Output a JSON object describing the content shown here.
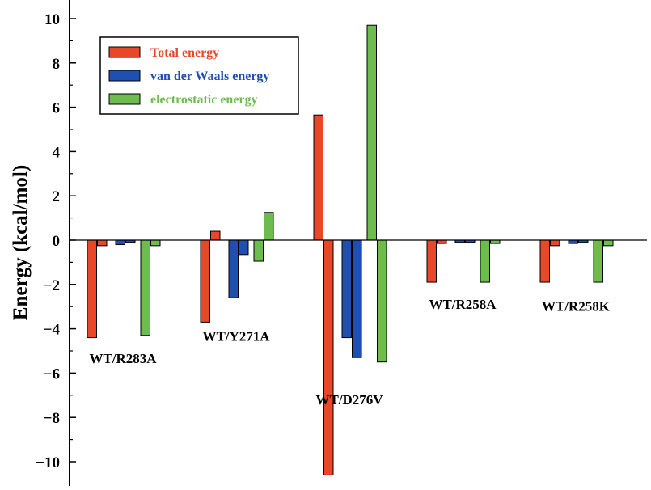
{
  "chart_data": {
    "type": "bar",
    "title": "",
    "xlabel": "",
    "ylabel": "Energy (kcal/mol)",
    "ylim": [
      -11,
      10
    ],
    "yticks": [
      10,
      8,
      6,
      4,
      2,
      0,
      -2,
      -4,
      -6,
      -8,
      -10
    ],
    "ytick_labels": [
      "10",
      "8",
      "6",
      "4",
      "2",
      "0",
      "−2",
      "−4",
      "−6",
      "−8",
      "−10"
    ],
    "legend_position": "top-left",
    "categories": [
      {
        "label": "WT/R283A",
        "label_y": -5.55
      },
      {
        "label": "WT/Y271A",
        "label_y": -4.55
      },
      {
        "label": "WT/D276V",
        "label_y": -7.4
      },
      {
        "label": "WT/R258A",
        "label_y": -3.1
      },
      {
        "label": "WT/R258K",
        "label_y": -3.2
      }
    ],
    "series": [
      {
        "name": "Total energy",
        "color": "#e8472a",
        "values": [
          [
            -4.4,
            -0.25
          ],
          [
            -3.7,
            0.4
          ],
          [
            5.65,
            -10.6
          ],
          [
            -1.9,
            -0.15
          ],
          [
            -1.9,
            -0.25
          ]
        ]
      },
      {
        "name": "van der Waals energy",
        "color": "#1f4fb0",
        "values": [
          [
            -0.2,
            -0.1
          ],
          [
            -2.6,
            -0.65
          ],
          [
            -4.4,
            -5.3
          ],
          [
            -0.1,
            -0.1
          ],
          [
            -0.15,
            -0.1
          ]
        ]
      },
      {
        "name": "electrostatic energy",
        "color": "#6cbd4e",
        "values": [
          [
            -4.3,
            -0.25
          ],
          [
            -0.95,
            1.25
          ],
          [
            9.7,
            -5.5
          ],
          [
            -1.9,
            -0.15
          ],
          [
            -1.9,
            -0.25
          ]
        ]
      }
    ]
  }
}
